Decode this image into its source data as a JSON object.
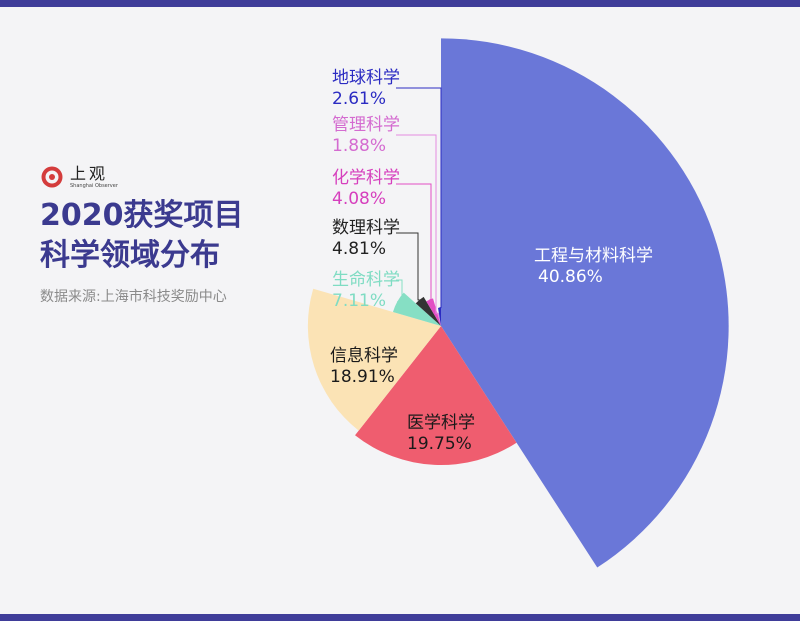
{
  "header": {
    "logo_text": "上观",
    "logo_subtext": "Shanghai Observer",
    "title_line1": "2020获奖项目",
    "title_line2": "科学领域分布",
    "source": "数据来源:上海市科技奖励中心"
  },
  "colors": {
    "band": "#3f3d99",
    "title": "#3b3a8f",
    "logo_red": "#d43c3c"
  },
  "chart_data": {
    "type": "pie",
    "subtype": "rose",
    "unit": "%",
    "title": "2020获奖项目科学领域分布",
    "slices": [
      {
        "name": "工程与材料科学",
        "value": 40.86,
        "color": "#6a77d8",
        "label_color": "#ffffff"
      },
      {
        "name": "医学科学",
        "value": 19.75,
        "color": "#ef5d6f",
        "label_color": "#1a1a1a"
      },
      {
        "name": "信息科学",
        "value": 18.91,
        "color": "#fbe3b5",
        "label_color": "#1a1a1a"
      },
      {
        "name": "生命科学",
        "value": 7.11,
        "color": "#86dfc4",
        "label_color": "#7fdcc3"
      },
      {
        "name": "数理科学",
        "value": 4.81,
        "color": "#333333",
        "label_color": "#222222"
      },
      {
        "name": "化学科学",
        "value": 4.08,
        "color": "#e24ec4",
        "label_color": "#d63fbd"
      },
      {
        "name": "管理科学",
        "value": 1.88,
        "color": "#e58de0",
        "label_color": "#d46bd0"
      },
      {
        "name": "地球科学",
        "value": 2.61,
        "color": "#2b2bc2",
        "label_color": "#2b2bc2"
      }
    ]
  }
}
